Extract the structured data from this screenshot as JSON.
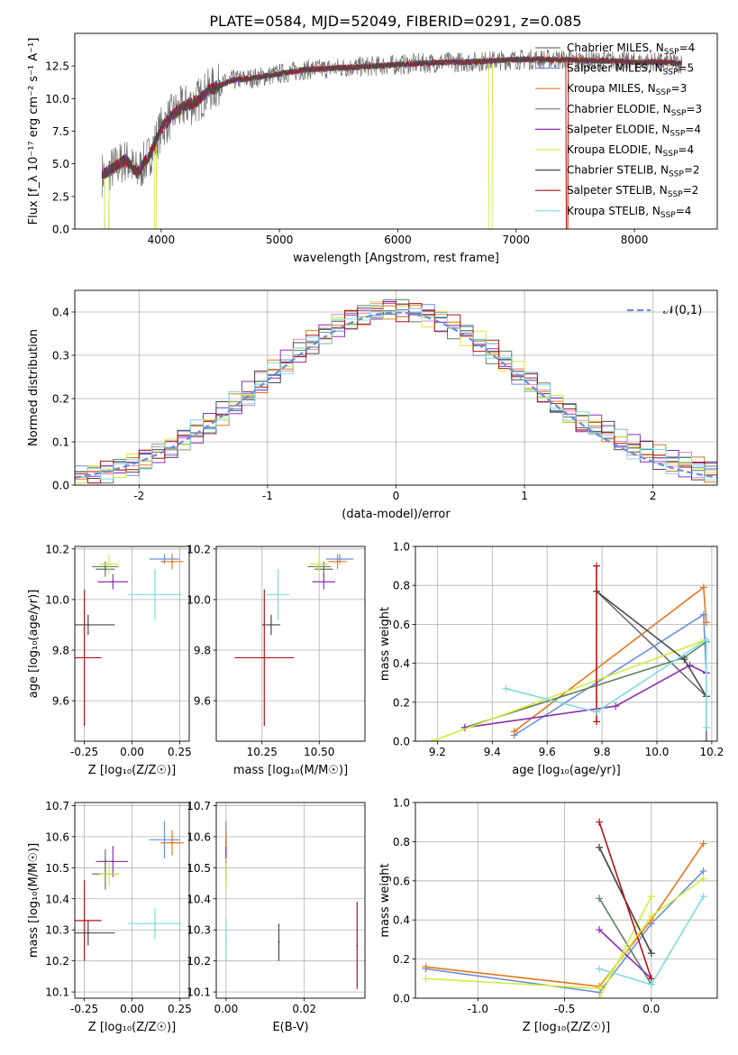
{
  "page_title": "PLATE=0584, MJD=52049, FIBERID=0291, z=0.085",
  "models": [
    {
      "name": "Chabrier MILES",
      "n": "4",
      "color": "#6f6f6f"
    },
    {
      "name": "Salpeter MILES",
      "n": "5",
      "color": "#6c8fdc"
    },
    {
      "name": "Kroupa MILES",
      "n": "3",
      "color": "#e6761c"
    },
    {
      "name": "Chabrier ELODIE",
      "n": "3",
      "color": "#5e8061"
    },
    {
      "name": "Salpeter ELODIE",
      "n": "4",
      "color": "#8e2fb5"
    },
    {
      "name": "Kroupa ELODIE",
      "n": "4",
      "color": "#d4ec3c"
    },
    {
      "name": "Chabrier STELIB",
      "n": "2",
      "color": "#4a4a4a"
    },
    {
      "name": "Salpeter STELIB",
      "n": "2",
      "color": "#b01515"
    },
    {
      "name": "Kroupa STELIB",
      "n": "4",
      "color": "#7fdbdb"
    }
  ],
  "chart_data": [
    {
      "id": "spectrum",
      "type": "line",
      "title": "PLATE=0584, MJD=52049, FIBERID=0291, z=0.085",
      "xlabel": "wavelength [Angstrom, rest frame]",
      "ylabel": "Flux [f_λ 10⁻¹⁷ erg cm⁻² s⁻¹ A⁻¹]",
      "xlim": [
        3270,
        8700
      ],
      "ylim": [
        0,
        15
      ],
      "xticks": [
        4000,
        5000,
        6000,
        7000,
        8000
      ],
      "yticks": [
        0.0,
        2.5,
        5.0,
        7.5,
        10.0,
        12.5
      ],
      "continuum": {
        "x": [
          3500,
          3600,
          3700,
          3800,
          3900,
          4000,
          4100,
          4200,
          4300,
          4400,
          4500,
          4600,
          4700,
          4800,
          5000,
          5200,
          5400,
          5600,
          5800,
          6000,
          6200,
          6400,
          6600,
          6800,
          7000,
          7200,
          7400,
          7600,
          7800,
          8000,
          8200,
          8400
        ],
        "y": [
          4.2,
          4.7,
          5.3,
          4.3,
          5.6,
          7.7,
          8.8,
          9.4,
          9.8,
          10.6,
          11.0,
          11.4,
          11.5,
          11.6,
          11.9,
          12.2,
          12.3,
          12.4,
          12.5,
          12.6,
          12.7,
          12.8,
          12.8,
          12.9,
          13.0,
          13.0,
          13.0,
          12.9,
          12.9,
          12.8,
          12.8,
          12.7
        ]
      },
      "legend": "upper right",
      "grid": false
    },
    {
      "id": "residual_hist",
      "type": "line",
      "xlabel": "(data-model)/error",
      "ylabel": "Normed distribution",
      "xlim": [
        -2.5,
        2.5
      ],
      "ylim": [
        0,
        0.45
      ],
      "xticks": [
        -2,
        -1,
        0,
        1,
        2
      ],
      "yticks": [
        0.0,
        0.1,
        0.2,
        0.3,
        0.4
      ],
      "reference": {
        "name": "𝒩(0,1)",
        "mean": 0,
        "sigma": 1
      },
      "legend": "upper right",
      "grid": true
    },
    {
      "id": "age_vs_Z",
      "type": "scatter",
      "xlabel": "Z [log₁₀(Z/Z☉)]",
      "ylabel": "age  [log₁₀(age/yr)]",
      "xlim": [
        -0.3,
        0.3
      ],
      "ylim": [
        9.44,
        10.21
      ],
      "xticks": [
        "-0.25",
        "0.00",
        "0.25"
      ],
      "yticks": [
        "9.6",
        "9.8",
        "10.0",
        "10.2"
      ],
      "points": [
        {
          "model": "Chabrier MILES",
          "x": -0.14,
          "y": 10.12,
          "xerr": 0.05,
          "yerr": 0.03
        },
        {
          "model": "Salpeter MILES",
          "x": 0.17,
          "y": 10.16,
          "xerr": 0.08,
          "yerr": 0.02
        },
        {
          "model": "Kroupa MILES",
          "x": 0.21,
          "y": 10.15,
          "xerr": 0.06,
          "yerr": 0.03
        },
        {
          "model": "Chabrier ELODIE",
          "x": -0.14,
          "y": 10.13,
          "xerr": 0.07,
          "yerr": 0.02
        },
        {
          "model": "Salpeter ELODIE",
          "x": -0.1,
          "y": 10.07,
          "xerr": 0.08,
          "yerr": 0.03
        },
        {
          "model": "Kroupa ELODIE",
          "x": -0.12,
          "y": 10.14,
          "xerr": 0.05,
          "yerr": 0.04
        },
        {
          "model": "Chabrier STELIB",
          "x": -0.23,
          "y": 9.9,
          "xerr": 0.14,
          "yerr": 0.04
        },
        {
          "model": "Salpeter STELIB",
          "x": -0.25,
          "y": 9.77,
          "xerr": 0.09,
          "yerr": 0.27
        },
        {
          "model": "Kroupa STELIB",
          "x": 0.12,
          "y": 10.02,
          "xerr": 0.14,
          "yerr": 0.1
        }
      ],
      "grid": true
    },
    {
      "id": "age_vs_mass",
      "type": "scatter",
      "xlabel": "mass [log₁₀(M/M☉)]",
      "xlim": [
        10.05,
        10.7
      ],
      "ylim": [
        9.44,
        10.21
      ],
      "xticks": [
        "10.25",
        "10.50"
      ],
      "yticks": [
        "9.6",
        "9.8",
        "10.0",
        "10.2"
      ],
      "points": [
        {
          "model": "Chabrier MILES",
          "x": 10.52,
          "y": 10.12,
          "xerr": 0.04,
          "yerr": 0.03
        },
        {
          "model": "Salpeter MILES",
          "x": 10.59,
          "y": 10.16,
          "xerr": 0.06,
          "yerr": 0.02
        },
        {
          "model": "Kroupa MILES",
          "x": 10.58,
          "y": 10.15,
          "xerr": 0.04,
          "yerr": 0.03
        },
        {
          "model": "Chabrier ELODIE",
          "x": 10.5,
          "y": 10.13,
          "xerr": 0.05,
          "yerr": 0.02
        },
        {
          "model": "Salpeter ELODIE",
          "x": 10.52,
          "y": 10.07,
          "xerr": 0.05,
          "yerr": 0.03
        },
        {
          "model": "Kroupa ELODIE",
          "x": 10.5,
          "y": 10.14,
          "xerr": 0.04,
          "yerr": 0.04
        },
        {
          "model": "Chabrier STELIB",
          "x": 10.29,
          "y": 9.9,
          "xerr": 0.04,
          "yerr": 0.04
        },
        {
          "model": "Salpeter STELIB",
          "x": 10.26,
          "y": 9.77,
          "xerr": 0.13,
          "yerr": 0.27
        },
        {
          "model": "Kroupa STELIB",
          "x": 10.32,
          "y": 10.02,
          "xerr": 0.05,
          "yerr": 0.1
        }
      ],
      "grid": true
    },
    {
      "id": "weight_vs_age",
      "type": "line",
      "xlabel": "age  [log₁₀(age/yr)]",
      "ylabel": "mass weight",
      "xlim": [
        9.12,
        10.22
      ],
      "ylim": [
        0,
        1
      ],
      "xticks": [
        "9.2",
        "9.4",
        "9.6",
        "9.8",
        "10.0",
        "10.2"
      ],
      "yticks": [
        "0.0",
        "0.2",
        "0.4",
        "0.6",
        "0.8",
        "1.0"
      ],
      "series": [
        {
          "model": "Chabrier MILES",
          "x": [
            9.78,
            10.18,
            10.18
          ],
          "y": [
            0.77,
            0.23,
            0.0
          ]
        },
        {
          "model": "Salpeter MILES",
          "x": [
            9.48,
            10.17,
            10.18
          ],
          "y": [
            0.03,
            0.65,
            0.35
          ]
        },
        {
          "model": "Kroupa MILES",
          "x": [
            9.48,
            10.17,
            10.18
          ],
          "y": [
            0.05,
            0.79,
            0.61
          ]
        },
        {
          "model": "Chabrier ELODIE",
          "x": [
            9.3,
            10.1,
            10.18
          ],
          "y": [
            0.07,
            0.43,
            0.51
          ]
        },
        {
          "model": "Salpeter ELODIE",
          "x": [
            9.3,
            9.85,
            10.12,
            10.18
          ],
          "y": [
            0.07,
            0.18,
            0.39,
            0.35
          ]
        },
        {
          "model": "Kroupa ELODIE",
          "x": [
            9.18,
            10.16,
            10.18
          ],
          "y": [
            0.0,
            0.51,
            0.52
          ]
        },
        {
          "model": "Chabrier STELIB",
          "x": [
            9.78,
            10.1,
            10.18
          ],
          "y": [
            0.77,
            0.42,
            0.23
          ]
        },
        {
          "model": "Salpeter STELIB",
          "x": [
            9.78,
            9.78
          ],
          "y": [
            0.9,
            0.1
          ]
        },
        {
          "model": "Kroupa STELIB",
          "x": [
            9.45,
            9.78,
            10.18,
            10.18
          ],
          "y": [
            0.27,
            0.15,
            0.52,
            0.07
          ]
        }
      ],
      "grid": true
    },
    {
      "id": "mass_vs_Z",
      "type": "scatter",
      "xlabel": "Z [log₁₀(Z/Z☉)]",
      "ylabel": "mass [log₁₀(M/M☉)]",
      "xlim": [
        -0.3,
        0.3
      ],
      "ylim": [
        10.08,
        10.71
      ],
      "xticks": [
        "-0.25",
        "0.00",
        "0.25"
      ],
      "yticks": [
        "10.1",
        "10.2",
        "10.3",
        "10.4",
        "10.5",
        "10.6",
        "10.7"
      ],
      "points": [
        {
          "model": "Chabrier MILES",
          "x": -0.14,
          "y": 10.52,
          "xerr": 0.05,
          "yerr": 0.04
        },
        {
          "model": "Salpeter MILES",
          "x": 0.17,
          "y": 10.59,
          "xerr": 0.08,
          "yerr": 0.06
        },
        {
          "model": "Kroupa MILES",
          "x": 0.21,
          "y": 10.58,
          "xerr": 0.06,
          "yerr": 0.04
        },
        {
          "model": "Chabrier ELODIE",
          "x": -0.14,
          "y": 10.48,
          "xerr": 0.07,
          "yerr": 0.05
        },
        {
          "model": "Salpeter ELODIE",
          "x": -0.1,
          "y": 10.52,
          "xerr": 0.08,
          "yerr": 0.05
        },
        {
          "model": "Kroupa ELODIE",
          "x": -0.12,
          "y": 10.48,
          "xerr": 0.05,
          "yerr": 0.04
        },
        {
          "model": "Chabrier STELIB",
          "x": -0.23,
          "y": 10.29,
          "xerr": 0.14,
          "yerr": 0.04
        },
        {
          "model": "Salpeter STELIB",
          "x": -0.25,
          "y": 10.33,
          "xerr": 0.09,
          "yerr": 0.13
        },
        {
          "model": "Kroupa STELIB",
          "x": 0.12,
          "y": 10.32,
          "xerr": 0.14,
          "yerr": 0.05
        }
      ],
      "grid": true
    },
    {
      "id": "mass_vs_ebv",
      "type": "scatter",
      "xlabel": "E(B-V)",
      "xlim": [
        -0.0025,
        0.0355
      ],
      "ylim": [
        10.08,
        10.71
      ],
      "xticks": [
        "0.00",
        "0.02"
      ],
      "yticks": [
        "10.1",
        "10.2",
        "10.3",
        "10.4",
        "10.5",
        "10.6",
        "10.7"
      ],
      "points": [
        {
          "model": "Chabrier MILES",
          "x": 0.0,
          "y": 10.52,
          "yerr": 0.04
        },
        {
          "model": "Salpeter MILES",
          "x": 0.0,
          "y": 10.59,
          "yerr": 0.06
        },
        {
          "model": "Kroupa MILES",
          "x": 0.0,
          "y": 10.58,
          "yerr": 0.04
        },
        {
          "model": "Chabrier ELODIE",
          "x": 0.0,
          "y": 10.48,
          "yerr": 0.05
        },
        {
          "model": "Salpeter ELODIE",
          "x": 0.0,
          "y": 10.52,
          "yerr": 0.05
        },
        {
          "model": "Kroupa ELODIE",
          "x": 0.0,
          "y": 10.48,
          "yerr": 0.05
        },
        {
          "model": "Chabrier STELIB",
          "x": 0.0135,
          "y": 10.26,
          "yerr": 0.06
        },
        {
          "model": "Salpeter STELIB",
          "x": 0.0335,
          "y": 10.25,
          "yerr": 0.14
        },
        {
          "model": "Kroupa STELIB",
          "x": 0.0,
          "y": 10.27,
          "yerr": 0.07
        }
      ],
      "grid": true
    },
    {
      "id": "weight_vs_Z",
      "type": "line",
      "xlabel": "Z [log₁₀(Z/Z☉)]",
      "ylabel": "mass weight",
      "xlim": [
        -1.36,
        0.38
      ],
      "ylim": [
        0,
        1
      ],
      "xticks": [
        "-1.0",
        "-0.5",
        "0.0"
      ],
      "yticks": [
        "0.0",
        "0.2",
        "0.4",
        "0.6",
        "0.8",
        "1.0"
      ],
      "series": [
        {
          "model": "Chabrier MILES",
          "x": [
            -0.3,
            0.0
          ],
          "y": [
            0.77,
            0.23
          ]
        },
        {
          "model": "Salpeter MILES",
          "x": [
            -1.3,
            -0.3,
            0.0,
            0.3
          ],
          "y": [
            0.15,
            0.03,
            0.38,
            0.65
          ]
        },
        {
          "model": "Kroupa MILES",
          "x": [
            -1.3,
            -0.3,
            0.0,
            0.3
          ],
          "y": [
            0.16,
            0.06,
            0.4,
            0.79
          ]
        },
        {
          "model": "Chabrier ELODIE",
          "x": [
            -0.3,
            0.0
          ],
          "y": [
            0.51,
            0.07
          ]
        },
        {
          "model": "Salpeter ELODIE",
          "x": [
            -0.3,
            0.0
          ],
          "y": [
            0.35,
            0.1
          ]
        },
        {
          "model": "Kroupa ELODIE",
          "x": [
            -0.3,
            0.0
          ],
          "y": [
            0.0,
            0.52
          ]
        },
        {
          "model": "Chabrier STELIB",
          "x": [
            -0.3,
            0.0
          ],
          "y": [
            0.77,
            0.23
          ]
        },
        {
          "model": "Salpeter STELIB",
          "x": [
            -0.3,
            0.0
          ],
          "y": [
            0.9,
            0.1
          ]
        },
        {
          "model": "Kroupa STELIB",
          "x": [
            -0.3,
            0.0,
            0.3
          ],
          "y": [
            0.15,
            0.07,
            0.52
          ]
        },
        {
          "model": "Kroupa ELODIE",
          "x": [
            -1.3,
            -0.3,
            0.0,
            0.3
          ],
          "y": [
            0.1,
            0.05,
            0.42,
            0.61
          ]
        }
      ],
      "grid": true
    }
  ]
}
